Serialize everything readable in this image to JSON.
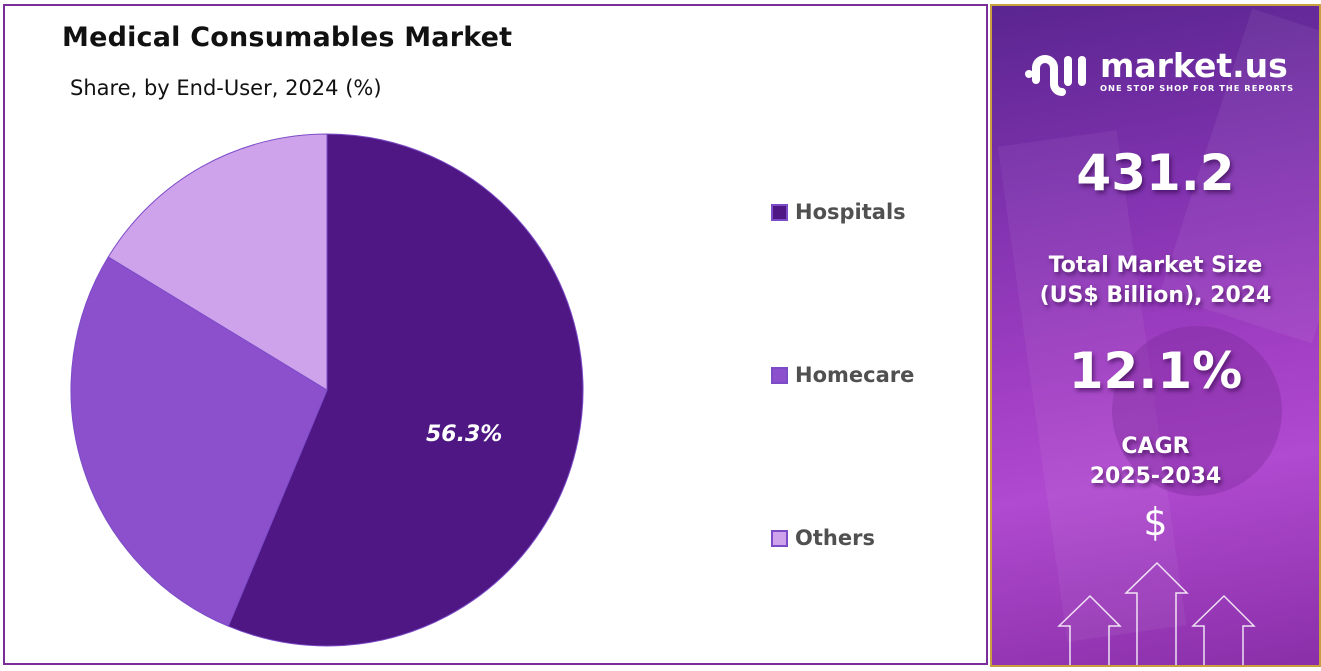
{
  "header": {
    "title": "Medical Consumables Market",
    "subtitle": "Share, by End-User, 2024 (%)"
  },
  "legend": {
    "items": [
      {
        "label": "Hospitals",
        "color": "#4e1784"
      },
      {
        "label": "Homecare",
        "color": "#8c50cc"
      },
      {
        "label": "Others",
        "color": "#cfa3ec"
      }
    ]
  },
  "pie_label": "56.3%",
  "sidebar": {
    "brand_name": "market.us",
    "brand_tagline": "ONE STOP SHOP FOR THE REPORTS",
    "market_size_value": "431.2",
    "market_size_label_line1": "Total Market Size",
    "market_size_label_line2": "(US$ Billion), 2024",
    "cagr_value": "12.1%",
    "cagr_label_line1": "CAGR",
    "cagr_label_line2": "2025-2034",
    "currency_symbol": "$",
    "colors": {
      "panel_top": "#5a2590",
      "panel_mid": "#a23fc4",
      "border": "#c8a040"
    }
  },
  "chart_data": {
    "type": "pie",
    "title": "Medical Consumables Market",
    "subtitle": "Share, by End-User, 2024 (%)",
    "categories": [
      "Hospitals",
      "Homecare",
      "Others"
    ],
    "values": [
      56.3,
      27.4,
      16.3
    ],
    "labeled_values": {
      "Hospitals": 56.3
    },
    "colors": [
      "#4e1784",
      "#8c50cc",
      "#cfa3ec"
    ],
    "start_angle": "12 o'clock, clockwise",
    "legend_position": "right"
  }
}
